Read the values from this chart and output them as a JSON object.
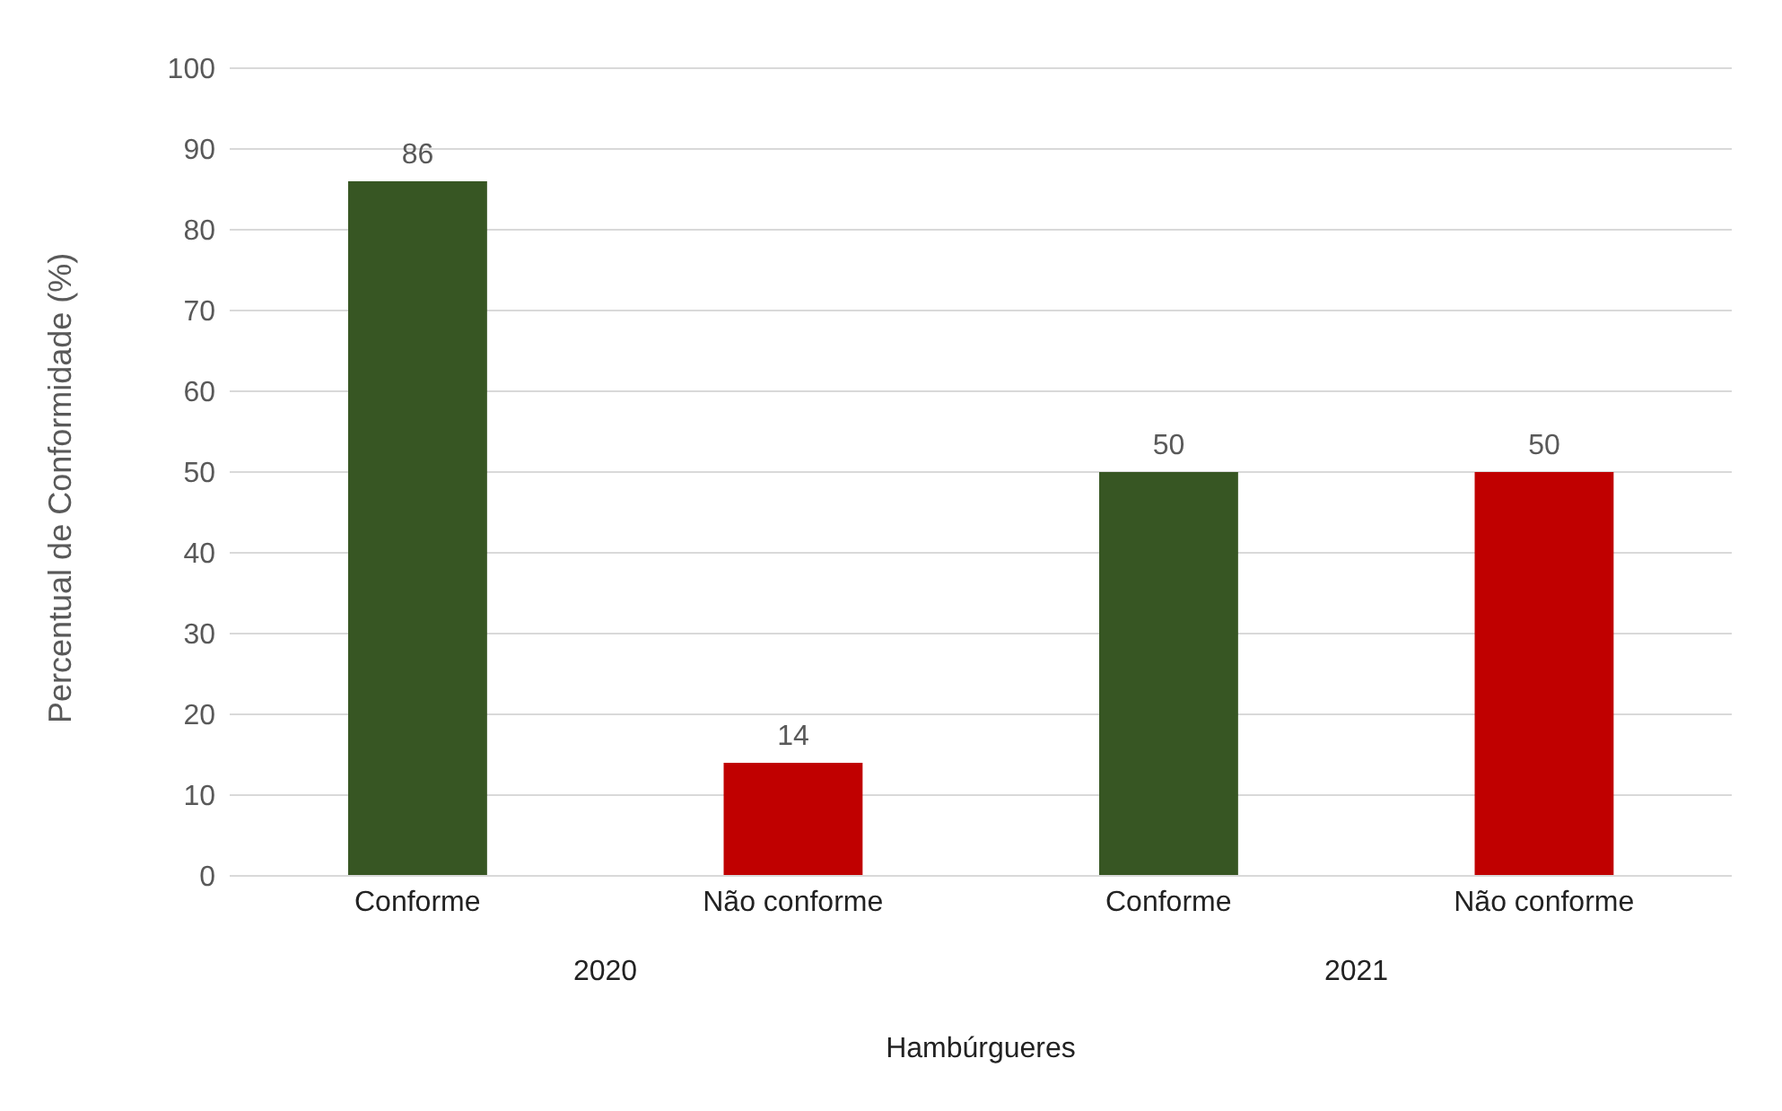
{
  "chart_data": {
    "type": "bar",
    "categories": [
      "Conforme",
      "Não conforme",
      "Conforme",
      "Não conforme"
    ],
    "values": [
      86,
      14,
      50,
      50
    ],
    "colors": [
      "#375623",
      "#c00000",
      "#375623",
      "#c00000"
    ],
    "ylabel": "Percentual de Conformidade (%)",
    "xlabel": "Hambúrgueres",
    "annotations": [
      "2020",
      "2021"
    ],
    "ylim": [
      0,
      100
    ],
    "yticks": [
      0,
      10,
      20,
      30,
      40,
      50,
      60,
      70,
      80,
      90,
      100
    ],
    "grid": "y",
    "data_labels": true
  }
}
